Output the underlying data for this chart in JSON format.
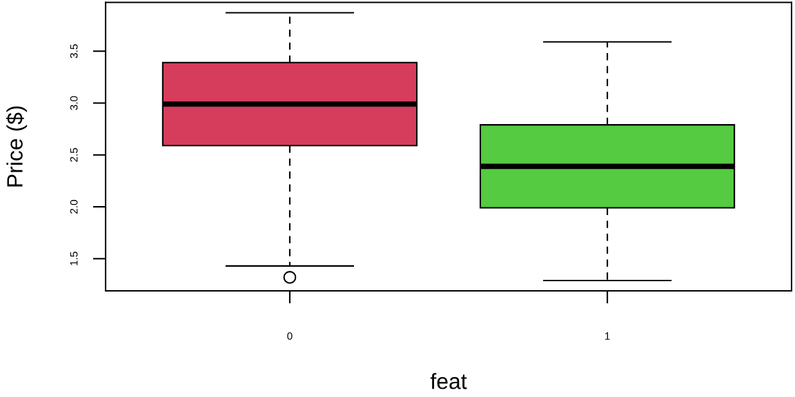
{
  "chart_data": {
    "type": "box",
    "categories": [
      "0",
      "1"
    ],
    "xlabel": "feat",
    "ylabel": "Price ($)",
    "ylim": [
      1.19,
      3.97
    ],
    "yticks": [
      1.5,
      {
        "value": 2,
        "label": "2.0"
      },
      2.5,
      {
        "value": 3,
        "label": "3.0"
      },
      3.5
    ],
    "colors": [
      "#d63c5b",
      "#54cb41"
    ],
    "boxes": [
      {
        "low": 1.43,
        "q1": 2.59,
        "median": 2.99,
        "q3": 3.39,
        "high": 3.87,
        "outliers": [
          1.32
        ]
      },
      {
        "low": 1.29,
        "q1": 1.99,
        "median": 2.39,
        "q3": 2.79,
        "high": 3.59
      }
    ]
  }
}
